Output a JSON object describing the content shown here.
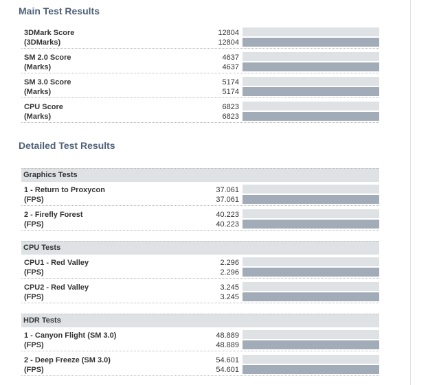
{
  "main": {
    "title": "Main Test Results",
    "rows": [
      {
        "name": "3DMark Score",
        "unit": "(3DMarks)",
        "ref_value": "12804",
        "value": "12804",
        "ref_fraction": 1.0,
        "fraction": 1.0
      },
      {
        "name": "SM 2.0 Score",
        "unit": "(Marks)",
        "ref_value": "4637",
        "value": "4637",
        "ref_fraction": 1.0,
        "fraction": 1.0
      },
      {
        "name": "SM 3.0 Score",
        "unit": "(Marks)",
        "ref_value": "5174",
        "value": "5174",
        "ref_fraction": 1.0,
        "fraction": 1.0
      },
      {
        "name": "CPU Score",
        "unit": "(Marks)",
        "ref_value": "6823",
        "value": "6823",
        "ref_fraction": 1.0,
        "fraction": 1.0
      }
    ]
  },
  "detailed": {
    "title": "Detailed Test Results",
    "groups": [
      {
        "label": "Graphics Tests",
        "rows": [
          {
            "name": "1 - Return to Proxycon",
            "unit": "(FPS)",
            "ref_value": "37.061",
            "value": "37.061",
            "ref_fraction": 1.0,
            "fraction": 1.0
          },
          {
            "name": "2 - Firefly Forest",
            "unit": "(FPS)",
            "ref_value": "40.223",
            "value": "40.223",
            "ref_fraction": 1.0,
            "fraction": 1.0
          }
        ]
      },
      {
        "label": "CPU Tests",
        "rows": [
          {
            "name": "CPU1 - Red Valley",
            "unit": "(FPS)",
            "ref_value": "2.296",
            "value": "2.296",
            "ref_fraction": 1.0,
            "fraction": 1.0
          },
          {
            "name": "CPU2 - Red Valley",
            "unit": "(FPS)",
            "ref_value": "3.245",
            "value": "3.245",
            "ref_fraction": 1.0,
            "fraction": 1.0
          }
        ]
      },
      {
        "label": "HDR Tests",
        "rows": [
          {
            "name": "1 - Canyon Flight (SM 3.0)",
            "unit": "(FPS)",
            "ref_value": "48.889",
            "value": "48.889",
            "ref_fraction": 1.0,
            "fraction": 1.0
          },
          {
            "name": "2 - Deep Freeze (SM 3.0)",
            "unit": "(FPS)",
            "ref_value": "54.601",
            "value": "54.601",
            "ref_fraction": 1.0,
            "fraction": 1.0
          }
        ]
      }
    ]
  },
  "colors": {
    "title": "#4d6078",
    "bar_track": "#dee2e5",
    "bar_result": "#a2acb8",
    "group_header_bg": "#dee2e5"
  }
}
